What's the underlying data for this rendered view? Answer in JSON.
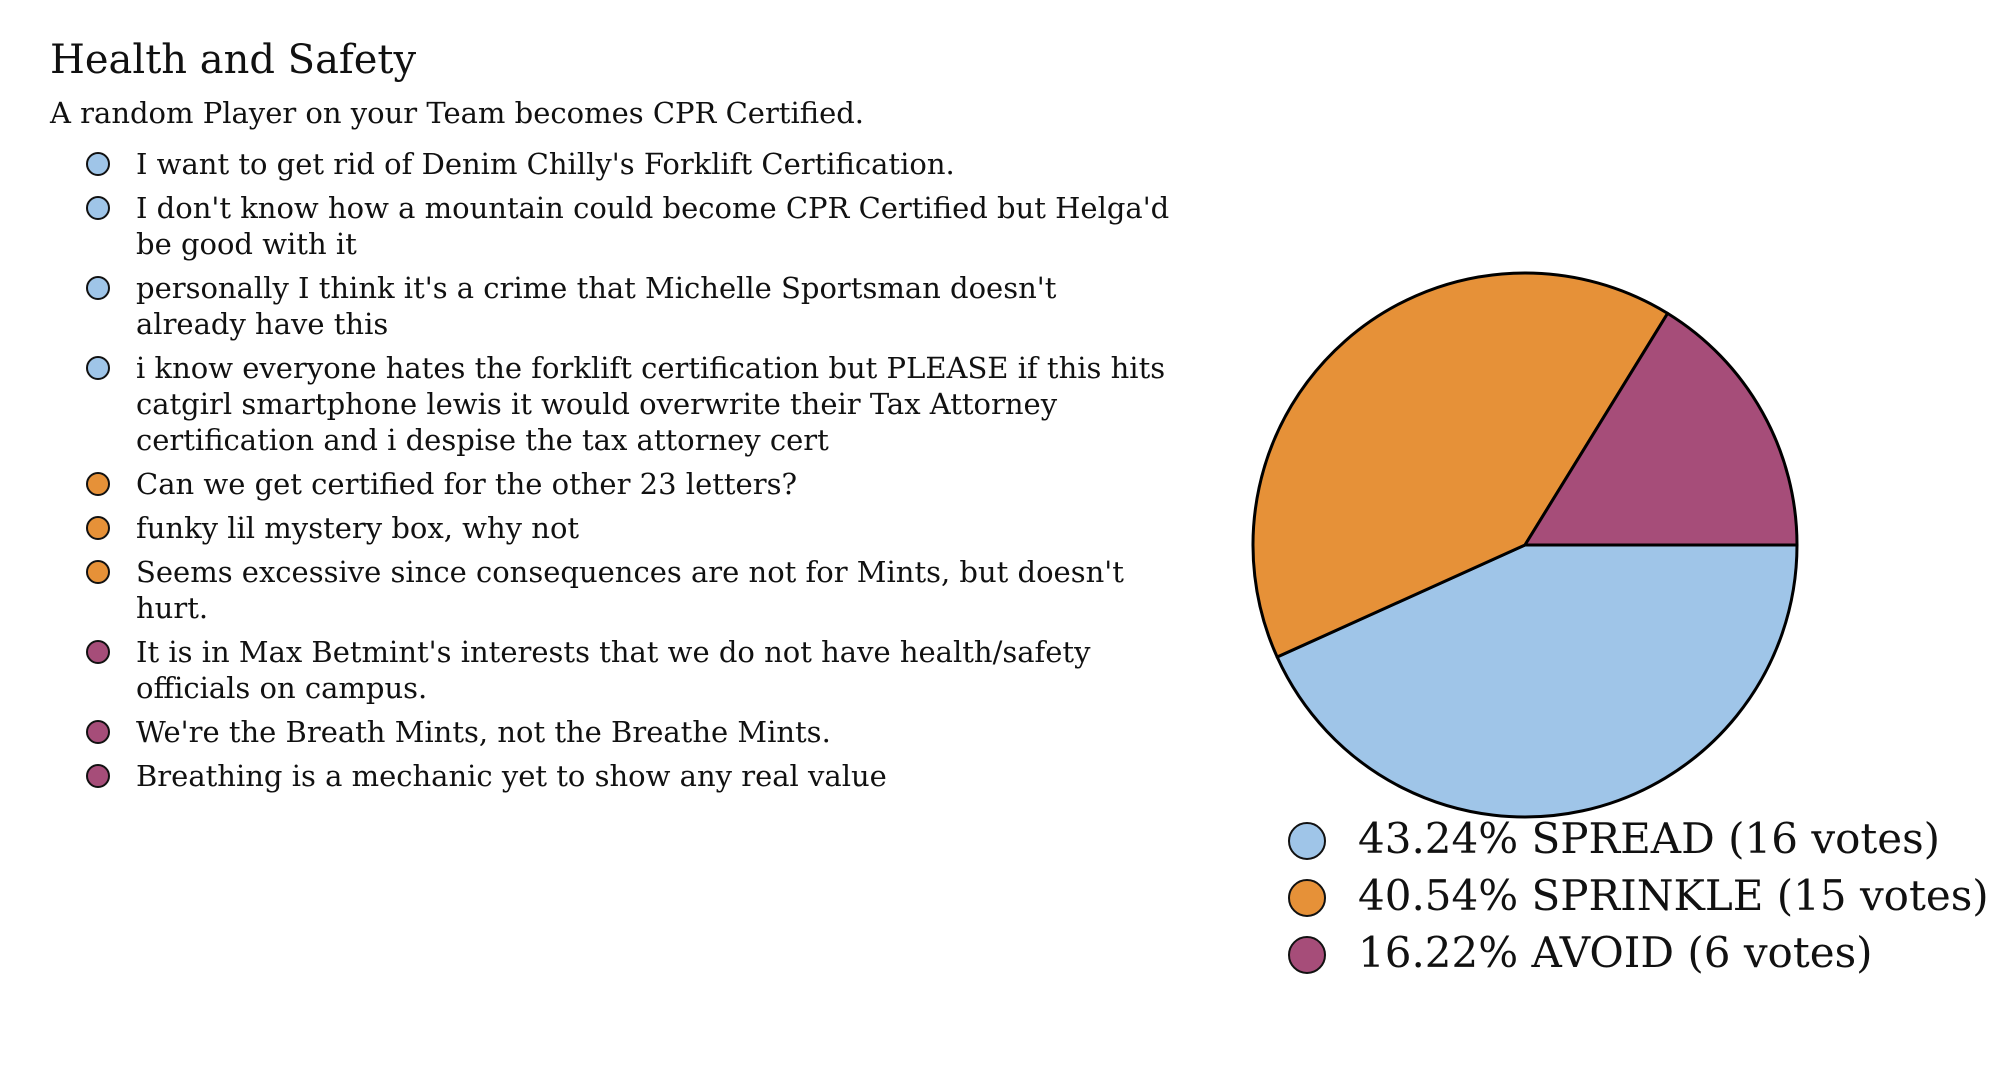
{
  "title": "Health and Safety",
  "subtitle": "A random Player on your Team becomes CPR Certified.",
  "colors": {
    "SPREAD": "#9fc5e8",
    "SPRINKLE": "#e69138",
    "AVOID": "#a64d79"
  },
  "comments": [
    {
      "choice": "SPREAD",
      "text": "I want to get rid of Denim Chilly's Forklift Certification."
    },
    {
      "choice": "SPREAD",
      "text": "I don't know how a mountain could become CPR Certified but Helga'd be good with it"
    },
    {
      "choice": "SPREAD",
      "text": "personally I think it's a crime that Michelle Sportsman doesn't already have this"
    },
    {
      "choice": "SPREAD",
      "text": "i know everyone hates the forklift certification but PLEASE if this hits catgirl smartphone lewis it would overwrite their Tax Attorney certification and i despise the tax attorney cert"
    },
    {
      "choice": "SPRINKLE",
      "text": "Can we get certified for the other 23 letters?"
    },
    {
      "choice": "SPRINKLE",
      "text": "funky lil mystery box, why not"
    },
    {
      "choice": "SPRINKLE",
      "text": "Seems excessive since consequences are not for Mints, but doesn't hurt."
    },
    {
      "choice": "AVOID",
      "text": "It is in Max Betmint's interests that we do not have health/safety officials on campus."
    },
    {
      "choice": "AVOID",
      "text": "We're the Breath Mints, not the Breathe Mints."
    },
    {
      "choice": "AVOID",
      "text": "Breathing is a mechanic yet to show any real value"
    }
  ],
  "legend": [
    {
      "choice": "SPREAD",
      "text": "43.24% SPREAD (16 votes)"
    },
    {
      "choice": "SPRINKLE",
      "text": "40.54% SPRINKLE (15 votes)"
    },
    {
      "choice": "AVOID",
      "text": "16.22% AVOID (6 votes)"
    }
  ],
  "chart_data": {
    "type": "pie",
    "categories": [
      "SPREAD",
      "SPRINKLE",
      "AVOID"
    ],
    "values": [
      16,
      15,
      6
    ],
    "percentages": [
      43.24,
      40.54,
      16.22
    ],
    "colors": [
      "#9fc5e8",
      "#e69138",
      "#a64d79"
    ],
    "title": "",
    "legend_position": "bottom"
  }
}
